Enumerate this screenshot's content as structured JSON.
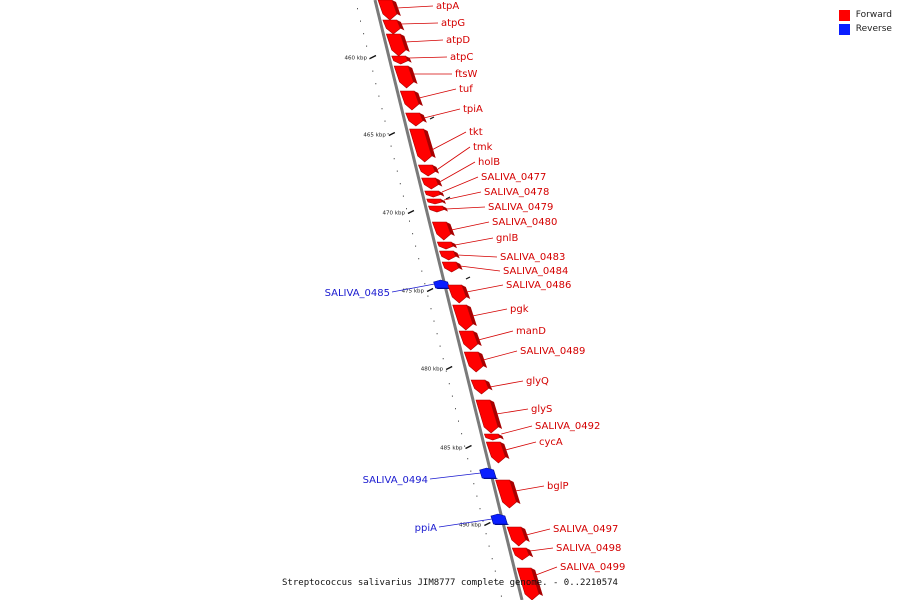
{
  "colors": {
    "forward": "#ff0000",
    "forward_dark": "#a80000",
    "reverse": "#0a1eff",
    "reverse_dark": "#000a90",
    "backbone": "#7a7a7a",
    "label_red": "#d40000",
    "label_blue": "#1a1ad0"
  },
  "legend": [
    {
      "label": "Forward",
      "color": "#ff0000"
    },
    {
      "label": "Reverse",
      "color": "#0a1eff"
    }
  ],
  "caption": "Streptococcus salivarius JIM8777 complete genome. - 0..2210574",
  "kbp_ticks": [
    "460 kbp",
    "465 kbp",
    "470 kbp",
    "475 kbp",
    "480 kbp",
    "485 kbp",
    "490 kbp"
  ],
  "genes": [
    {
      "name": "atpA",
      "strand": "forward"
    },
    {
      "name": "atpG",
      "strand": "forward"
    },
    {
      "name": "atpD",
      "strand": "forward"
    },
    {
      "name": "atpC",
      "strand": "forward"
    },
    {
      "name": "ftsW",
      "strand": "forward"
    },
    {
      "name": "tuf",
      "strand": "forward"
    },
    {
      "name": "tpiA",
      "strand": "forward"
    },
    {
      "name": "tkt",
      "strand": "forward"
    },
    {
      "name": "tmk",
      "strand": "forward"
    },
    {
      "name": "holB",
      "strand": "forward"
    },
    {
      "name": "SALIVA_0477",
      "strand": "forward"
    },
    {
      "name": "SALIVA_0478",
      "strand": "forward"
    },
    {
      "name": "SALIVA_0479",
      "strand": "forward"
    },
    {
      "name": "SALIVA_0480",
      "strand": "forward"
    },
    {
      "name": "gnlB",
      "strand": "forward"
    },
    {
      "name": "SALIVA_0483",
      "strand": "forward"
    },
    {
      "name": "SALIVA_0484",
      "strand": "forward"
    },
    {
      "name": "SALIVA_0485",
      "strand": "reverse"
    },
    {
      "name": "SALIVA_0486",
      "strand": "forward"
    },
    {
      "name": "pgk",
      "strand": "forward"
    },
    {
      "name": "manD",
      "strand": "forward"
    },
    {
      "name": "SALIVA_0489",
      "strand": "forward"
    },
    {
      "name": "glyQ",
      "strand": "forward"
    },
    {
      "name": "glyS",
      "strand": "forward"
    },
    {
      "name": "SALIVA_0492",
      "strand": "forward"
    },
    {
      "name": "cycA",
      "strand": "forward"
    },
    {
      "name": "SALIVA_0494",
      "strand": "reverse"
    },
    {
      "name": "bglP",
      "strand": "forward"
    },
    {
      "name": "ppiA",
      "strand": "reverse"
    },
    {
      "name": "SALIVA_0497",
      "strand": "forward"
    },
    {
      "name": "SALIVA_0498",
      "strand": "forward"
    },
    {
      "name": "SALIVA_0499",
      "strand": "forward"
    }
  ]
}
